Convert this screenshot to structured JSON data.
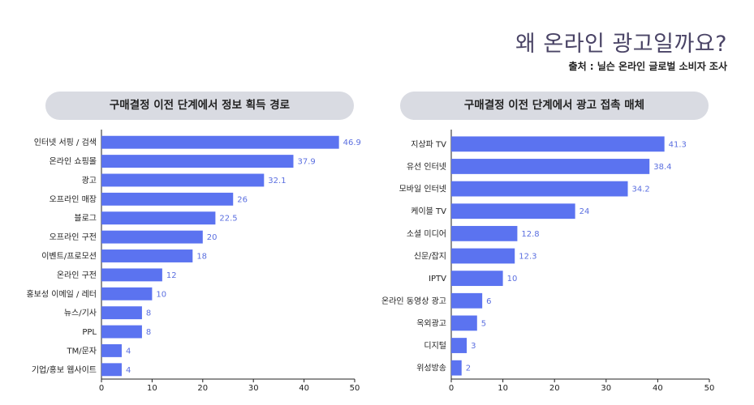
{
  "header": {
    "title": "왜 온라인 광고일까요?",
    "source": "출처 : 닐슨 온라인 글로벌 소비자 조사"
  },
  "colors": {
    "bar": "#5b73f0",
    "value_label": "#5b6fe0",
    "pill": "#d9dbe2"
  },
  "chart_data": [
    {
      "type": "bar",
      "orientation": "horizontal",
      "title": "구매결정 이전 단계에서 정보 획득 경로",
      "categories": [
        "인터넷 서핑 / 검색",
        "온라인 쇼핑몰",
        "광고",
        "오프라인 매장",
        "블로그",
        "오프라인 구전",
        "이벤트/프로모션",
        "온라인 구전",
        "홍보성 이메일 / 레터",
        "뉴스/기사",
        "PPL",
        "TM/문자",
        "기업/홍보 웹사이트"
      ],
      "values": [
        46.9,
        37.9,
        32.1,
        26,
        22.5,
        20,
        18,
        12,
        10,
        8,
        8,
        4,
        4
      ],
      "value_labels": [
        "46.9",
        "37.9",
        "32.1",
        "26",
        "22.5",
        "20",
        "18",
        "12",
        "10",
        "8",
        "8",
        "4",
        "4"
      ],
      "xlim": [
        0,
        50
      ],
      "xticks": [
        "0",
        "10",
        "20",
        "30",
        "40",
        "50"
      ],
      "grid": false
    },
    {
      "type": "bar",
      "orientation": "horizontal",
      "title": "구매결정 이전 단계에서 광고 접촉 매체",
      "categories": [
        "지상파 TV",
        "유선 인터넷",
        "모바일 인터넷",
        "케이블 TV",
        "소셜 미디어",
        "신문/잡지",
        "IPTV",
        "온라인 동영상 광고",
        "옥외광고",
        "디지털",
        "위성방송"
      ],
      "values": [
        41.3,
        38.4,
        34.2,
        24,
        12.8,
        12.3,
        10,
        6,
        5,
        3,
        2
      ],
      "value_labels": [
        "41.3",
        "38.4",
        "34.2",
        "24",
        "12.8",
        "12.3",
        "10",
        "6",
        "5",
        "3",
        "2"
      ],
      "xlim": [
        0,
        50
      ],
      "xticks": [
        "0",
        "10",
        "20",
        "30",
        "40",
        "50"
      ],
      "grid": false
    }
  ]
}
